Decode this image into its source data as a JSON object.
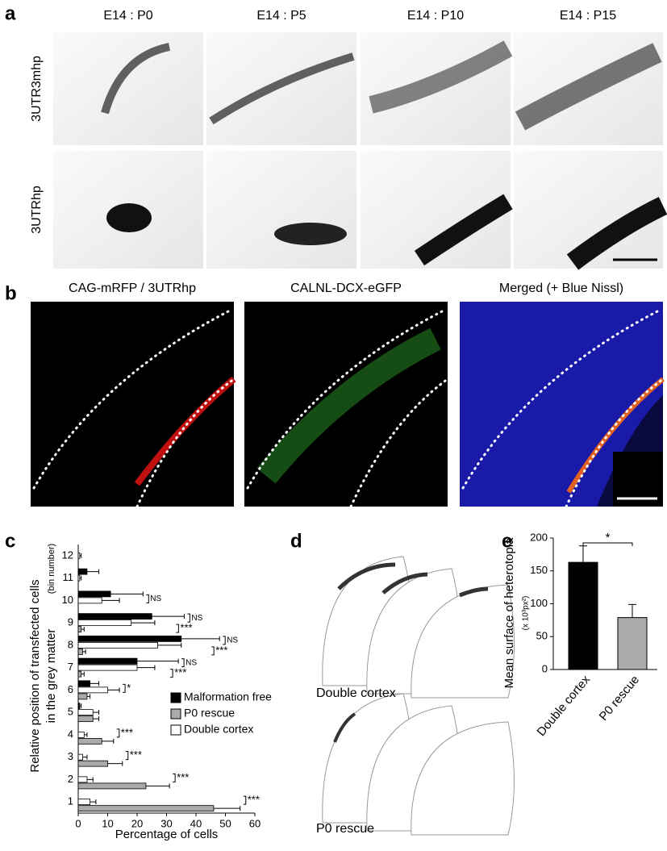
{
  "panels": {
    "a": {
      "letter": "a",
      "columns": [
        "E14 : P0",
        "E14 : P5",
        "E14 : P10",
        "E14 : P15"
      ],
      "rows": [
        "3UTR3mhp",
        "3UTRhp"
      ]
    },
    "b": {
      "letter": "b",
      "columns": [
        "CAG-mRFP / 3UTRhp",
        "CALNL-DCX-eGFP",
        "Merged (+ Blue Nissl)"
      ]
    },
    "c": {
      "letter": "c"
    },
    "d": {
      "letter": "d",
      "labels": [
        "Double cortex",
        "P0 rescue"
      ]
    },
    "e": {
      "letter": "e"
    }
  },
  "chart_data": [
    {
      "type": "hbar",
      "xlabel": "Percentage of cells",
      "ylabel": [
        "Relative position of transfected cells",
        "in the grey matter"
      ],
      "ylabel_note": "(bin number)",
      "categories": [
        "1",
        "2",
        "3",
        "4",
        "5",
        "6",
        "7",
        "8",
        "9",
        "10",
        "11",
        "12"
      ],
      "series": [
        {
          "name": "Malformation free",
          "color": "#000000",
          "values": [
            0,
            0,
            0,
            0,
            0.5,
            4,
            20,
            35,
            25,
            11,
            3,
            0
          ],
          "errors": [
            0,
            0,
            0,
            0,
            0.5,
            3,
            14,
            13,
            11,
            11,
            4,
            0
          ]
        },
        {
          "name": "P0 rescue",
          "color": "#aaaaaa",
          "values": [
            46,
            23,
            10,
            8,
            5,
            3,
            1,
            1.5,
            1,
            0,
            0,
            0
          ],
          "errors": [
            9,
            8,
            5,
            4,
            2,
            1,
            1,
            1,
            1,
            0,
            0,
            0
          ]
        },
        {
          "name": "Double cortex",
          "color": "#ffffff",
          "values": [
            4,
            3,
            1.5,
            2,
            5,
            10,
            20,
            27,
            18,
            8,
            0.5,
            0.5
          ],
          "errors": [
            2,
            2,
            1.5,
            1,
            2,
            4,
            6,
            8,
            8,
            6,
            0.5,
            0.5
          ]
        }
      ],
      "annotations": [
        {
          "category": "10",
          "text": "NS"
        },
        {
          "category": "9",
          "text": "NS"
        },
        {
          "category": "9",
          "text": "***"
        },
        {
          "category": "8",
          "text": "NS"
        },
        {
          "category": "8",
          "text": "***"
        },
        {
          "category": "7",
          "text": "NS"
        },
        {
          "category": "7",
          "text": "***"
        },
        {
          "category": "6",
          "text": "*"
        },
        {
          "category": "4",
          "text": "***"
        },
        {
          "category": "3",
          "text": "***"
        },
        {
          "category": "2",
          "text": "***"
        },
        {
          "category": "1",
          "text": "***"
        }
      ],
      "xlim": [
        0,
        60
      ],
      "xticks": [
        0,
        10,
        20,
        30,
        40,
        50,
        60
      ]
    },
    {
      "type": "bar",
      "ylabel": "Mean surface of heterotopia",
      "ylabel_note": "(x 10³px²)",
      "categories": [
        "Double cortex",
        "P0 rescue"
      ],
      "values": [
        163,
        79
      ],
      "errors": [
        25,
        20
      ],
      "colors": [
        "#000000",
        "#aaaaaa"
      ],
      "significance": "*",
      "ylim": [
        0,
        200
      ],
      "yticks": [
        0,
        50,
        100,
        150,
        200
      ]
    }
  ]
}
